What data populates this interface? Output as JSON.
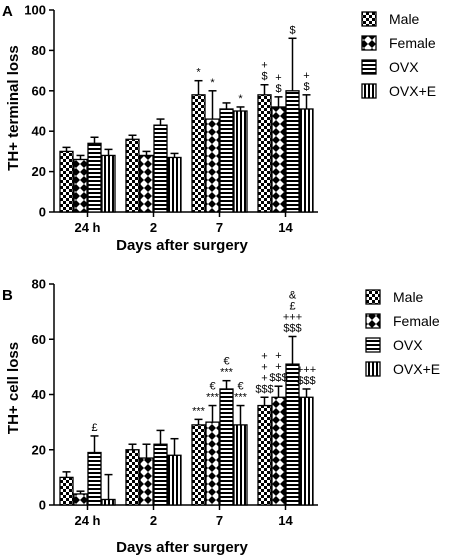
{
  "chart_data": [
    {
      "type": "bar",
      "panel": "A",
      "title": "",
      "xlabel": "Days after surgery",
      "ylabel": "TH+ terminal loss",
      "ylim": [
        0,
        100
      ],
      "yticks": [
        "0",
        "20",
        "40",
        "60",
        "80",
        "100"
      ],
      "categories": [
        "24 h",
        "2",
        "7",
        "14"
      ],
      "legend": "right",
      "grid": false,
      "series": [
        {
          "name": "Male",
          "pattern": "checker",
          "values": [
            30,
            36,
            58,
            58
          ],
          "err": [
            2,
            2,
            7,
            5
          ]
        },
        {
          "name": "Female",
          "pattern": "diamond",
          "values": [
            26,
            28,
            46,
            52
          ],
          "err": [
            2,
            2,
            14,
            5
          ]
        },
        {
          "name": "OVX",
          "pattern": "hstripe",
          "values": [
            34,
            43,
            51,
            60
          ],
          "err": [
            3,
            3,
            3,
            26
          ]
        },
        {
          "name": "OVX+E",
          "pattern": "vstripe",
          "values": [
            28,
            27,
            50,
            51
          ],
          "err": [
            3,
            2,
            2,
            7
          ]
        }
      ],
      "annotations": [
        {
          "category": 2,
          "series": 0,
          "text": [
            "*"
          ]
        },
        {
          "category": 2,
          "series": 1,
          "text": [
            "*"
          ]
        },
        {
          "category": 2,
          "series": 3,
          "text": [
            "*"
          ]
        },
        {
          "category": 3,
          "series": 0,
          "text": [
            "+",
            "$"
          ]
        },
        {
          "category": 3,
          "series": 1,
          "text": [
            "+",
            "$"
          ]
        },
        {
          "category": 3,
          "series": 2,
          "text": [
            "$"
          ]
        },
        {
          "category": 3,
          "series": 3,
          "text": [
            "+",
            "$"
          ]
        }
      ]
    },
    {
      "type": "bar",
      "panel": "B",
      "title": "",
      "xlabel": "Days after surgery",
      "ylabel": "TH+ cell loss",
      "ylim": [
        0,
        80
      ],
      "yticks": [
        "0",
        "20",
        "40",
        "60",
        "80"
      ],
      "categories": [
        "24 h",
        "2",
        "7",
        "14"
      ],
      "legend": "right",
      "grid": false,
      "series": [
        {
          "name": "Male",
          "pattern": "checker",
          "values": [
            10,
            20,
            29,
            36
          ],
          "err": [
            2,
            2,
            2,
            3
          ]
        },
        {
          "name": "Female",
          "pattern": "diamond",
          "values": [
            4,
            17,
            30,
            39
          ],
          "err": [
            1,
            5,
            6,
            4
          ]
        },
        {
          "name": "OVX",
          "pattern": "hstripe",
          "values": [
            19,
            22,
            42,
            51
          ],
          "err": [
            6,
            5,
            3,
            10
          ]
        },
        {
          "name": "OVX+E",
          "pattern": "vstripe",
          "values": [
            2,
            18,
            29,
            39
          ],
          "err": [
            9,
            6,
            7,
            3
          ]
        }
      ],
      "annotations": [
        {
          "category": 0,
          "series": 2,
          "text": [
            "£"
          ]
        },
        {
          "category": 2,
          "series": 0,
          "text": [
            "***"
          ]
        },
        {
          "category": 2,
          "series": 1,
          "text": [
            "€",
            "***"
          ]
        },
        {
          "category": 2,
          "series": 2,
          "text": [
            "€",
            "***"
          ]
        },
        {
          "category": 2,
          "series": 3,
          "text": [
            "€",
            "***"
          ]
        },
        {
          "category": 3,
          "series": 0,
          "text": [
            "+",
            "+",
            "+",
            "$$$"
          ]
        },
        {
          "category": 3,
          "series": 1,
          "text": [
            "+",
            "+",
            "$$$"
          ]
        },
        {
          "category": 3,
          "series": 2,
          "text": [
            "&",
            "£",
            "+++",
            "$$$"
          ]
        },
        {
          "category": 3,
          "series": 3,
          "text": [
            "+++",
            "$$$"
          ]
        }
      ]
    }
  ]
}
